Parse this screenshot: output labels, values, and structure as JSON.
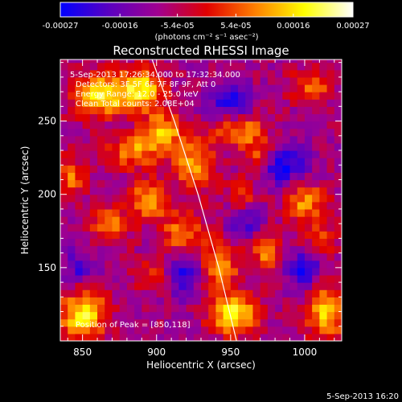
{
  "chart_data": {
    "type": "heatmap",
    "title": "Reconstructed RHESSI Image",
    "xlabel": "Heliocentric X (arcsec)",
    "ylabel": "Heliocentric Y (arcsec)",
    "xlim": [
      835,
      1025
    ],
    "ylim": [
      100,
      292
    ],
    "x_ticks": [
      850,
      900,
      950,
      1000
    ],
    "y_ticks": [
      150,
      200,
      250
    ],
    "colorbar": {
      "tick_labels": [
        "-0.00027",
        "-0.00016",
        "-5.4e-05",
        "5.4e-05",
        "0.00016",
        "0.00027"
      ],
      "tick_values": [
        -0.00027,
        -0.00016,
        -5.4e-05,
        5.4e-05,
        0.00016,
        0.00027
      ],
      "range": [
        -0.00027,
        0.00027
      ],
      "units_label": "(photons cm⁻² s⁻¹ asec⁻²)",
      "colors": [
        "#0000ff",
        "#5a00c0",
        "#a00090",
        "#e00000",
        "#ff8000",
        "#ffff00",
        "#ffffff"
      ]
    },
    "annotations": {
      "time_range": "5-Sep-2013 17:26:34.000 to 17:32:34.000",
      "detectors": "Detectors: 3F 5F 6F 7F 8F 9F, Att 0",
      "energy": "Energy Range: 12.0 - 25.0 keV",
      "clean": "Clean    Total counts: 2.08E+04",
      "peak": "Position of Peak = [850,118]"
    },
    "limb_curve": {
      "x": [
        897,
        912,
        928,
        942,
        954
      ],
      "y": [
        292,
        250,
        200,
        150,
        100
      ]
    },
    "hot_regions": [
      {
        "x": 862,
        "y": 268,
        "amp": 0.00027,
        "sx": 13,
        "sy": 10
      },
      {
        "x": 890,
        "y": 272,
        "amp": 0.00024,
        "sx": 10,
        "sy": 10
      },
      {
        "x": 905,
        "y": 244,
        "amp": 0.0002,
        "sx": 9,
        "sy": 9
      },
      {
        "x": 885,
        "y": 230,
        "amp": 0.00018,
        "sx": 12,
        "sy": 8
      },
      {
        "x": 925,
        "y": 222,
        "amp": 0.00019,
        "sx": 10,
        "sy": 12
      },
      {
        "x": 842,
        "y": 212,
        "amp": 0.00015,
        "sx": 7,
        "sy": 10
      },
      {
        "x": 895,
        "y": 197,
        "amp": 0.00021,
        "sx": 8,
        "sy": 9
      },
      {
        "x": 868,
        "y": 180,
        "amp": 0.00016,
        "sx": 9,
        "sy": 9
      },
      {
        "x": 918,
        "y": 170,
        "amp": 0.00019,
        "sx": 11,
        "sy": 13
      },
      {
        "x": 900,
        "y": 145,
        "amp": 0.00013,
        "sx": 9,
        "sy": 8
      },
      {
        "x": 850,
        "y": 118,
        "amp": 0.00027,
        "sx": 11,
        "sy": 12
      },
      {
        "x": 940,
        "y": 150,
        "amp": 0.00022,
        "sx": 10,
        "sy": 12
      },
      {
        "x": 952,
        "y": 118,
        "amp": 0.00027,
        "sx": 11,
        "sy": 9
      },
      {
        "x": 975,
        "y": 160,
        "amp": 0.00016,
        "sx": 9,
        "sy": 10
      },
      {
        "x": 955,
        "y": 245,
        "amp": 0.00019,
        "sx": 12,
        "sy": 8
      },
      {
        "x": 970,
        "y": 228,
        "amp": 0.00015,
        "sx": 8,
        "sy": 8
      },
      {
        "x": 1000,
        "y": 195,
        "amp": 0.00018,
        "sx": 10,
        "sy": 10
      },
      {
        "x": 1015,
        "y": 120,
        "amp": 0.00023,
        "sx": 10,
        "sy": 12
      },
      {
        "x": 1005,
        "y": 275,
        "amp": 0.00014,
        "sx": 10,
        "sy": 8
      },
      {
        "x": 1010,
        "y": 170,
        "amp": 0.00012,
        "sx": 8,
        "sy": 8
      },
      {
        "x": 958,
        "y": 200,
        "amp": 0.0001,
        "sx": 8,
        "sy": 8
      }
    ],
    "cold_regions": [
      {
        "x": 920,
        "y": 150,
        "amp": -0.00022,
        "sx": 11,
        "sy": 12
      },
      {
        "x": 985,
        "y": 220,
        "amp": -0.00018,
        "sx": 12,
        "sy": 10
      },
      {
        "x": 950,
        "y": 262,
        "amp": -0.00017,
        "sx": 10,
        "sy": 9
      },
      {
        "x": 998,
        "y": 150,
        "amp": -0.00016,
        "sx": 9,
        "sy": 10
      },
      {
        "x": 960,
        "y": 180,
        "amp": -0.00012,
        "sx": 9,
        "sy": 9
      },
      {
        "x": 848,
        "y": 150,
        "amp": -0.00012,
        "sx": 8,
        "sy": 9
      }
    ]
  },
  "footer": {
    "timestamp": "5-Sep-2013 16:20"
  }
}
